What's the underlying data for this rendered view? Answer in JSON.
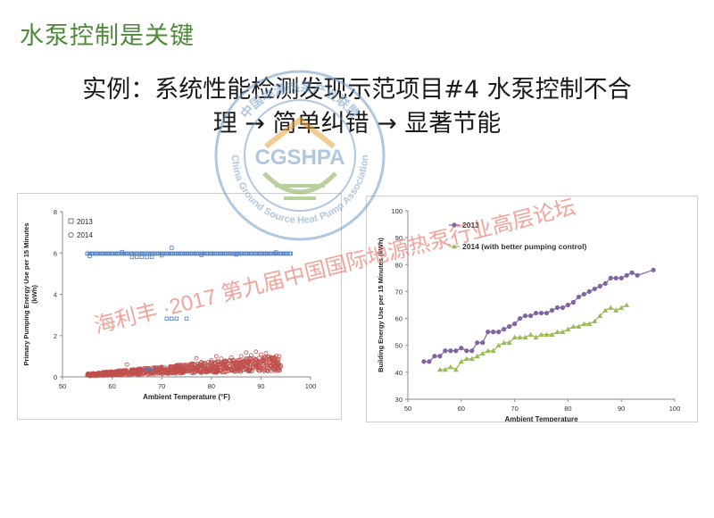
{
  "slide": {
    "title": "水泵控制是关键",
    "subtitle_line1": "实例：系统性能检测发现示范项目#4 水泵控制不合",
    "subtitle_line2": "理 → 简单纠错 → 显著节能"
  },
  "stamp": {
    "acronym": "CGSHPA",
    "ring_text": "China Ground Source Heat Pump Association",
    "top_text": "中国地源热泵产业联盟",
    "color": "#6f9bc7",
    "accent": "#e7a23a"
  },
  "watermark": {
    "text": "海利丰 ·2017  第九届中国国际地源热泵行业高层论坛",
    "color": "#e8584a"
  },
  "colors": {
    "title_green": "#4e8a3a",
    "series_2013_left": "#4f7fc0",
    "series_2014_left": "#c0504d",
    "series_2013_right": "#8064a2",
    "series_2014_right": "#9bbb59"
  },
  "chart_data": [
    {
      "type": "scatter",
      "title": "",
      "xlabel": "Ambient Temperature (°F)",
      "ylabel": "Primary Pumping Energy Use per 15 Minutes (kWh)",
      "ylabel_line1": "Primary Pumping Energy Use per 15 Minutes",
      "ylabel_line2": "(kWh)",
      "xlim": [
        50,
        100
      ],
      "ylim": [
        0,
        8
      ],
      "x_ticks": [
        "50",
        "60",
        "70",
        "80",
        "90",
        "100"
      ],
      "y_ticks": [
        "0",
        "2",
        "4",
        "6",
        "8"
      ],
      "grid": false,
      "legend": "top-left",
      "series": [
        {
          "name": "2013",
          "marker": "square-open",
          "points": [
            [
              55,
              5.97
            ],
            [
              56,
              5.97
            ],
            [
              57,
              5.97
            ],
            [
              58,
              5.97
            ],
            [
              59,
              5.97
            ],
            [
              60,
              5.97
            ],
            [
              61,
              5.97
            ],
            [
              62,
              5.97
            ],
            [
              63,
              5.97
            ],
            [
              64,
              5.97
            ],
            [
              65,
              5.97
            ],
            [
              66,
              5.97
            ],
            [
              67,
              5.97
            ],
            [
              68,
              5.97
            ],
            [
              69,
              5.97
            ],
            [
              70,
              5.97
            ],
            [
              71,
              5.97
            ],
            [
              72,
              5.97
            ],
            [
              73,
              5.97
            ],
            [
              74,
              5.97
            ],
            [
              75,
              5.97
            ],
            [
              76,
              5.97
            ],
            [
              77,
              5.97
            ],
            [
              78,
              5.97
            ],
            [
              79,
              5.97
            ],
            [
              80,
              5.97
            ],
            [
              81,
              5.97
            ],
            [
              82,
              5.97
            ],
            [
              83,
              5.97
            ],
            [
              84,
              5.97
            ],
            [
              85,
              5.97
            ],
            [
              86,
              5.97
            ],
            [
              87,
              5.97
            ],
            [
              88,
              5.97
            ],
            [
              89,
              5.97
            ],
            [
              90,
              5.97
            ],
            [
              91,
              5.97
            ],
            [
              92,
              5.97
            ],
            [
              93,
              5.97
            ],
            [
              94,
              5.97
            ],
            [
              95,
              5.97
            ],
            [
              96,
              5.97
            ],
            [
              55.5,
              5.85
            ],
            [
              62,
              6.05
            ],
            [
              70,
              5.88
            ],
            [
              72,
              6.25
            ],
            [
              78,
              5.9
            ],
            [
              85,
              5.92
            ],
            [
              93,
              6.03
            ],
            [
              64,
              5.8
            ],
            [
              65,
              5.8
            ],
            [
              66,
              5.8
            ],
            [
              67,
              5.8
            ],
            [
              68,
              5.8
            ],
            [
              71,
              2.82
            ],
            [
              72,
              2.82
            ],
            [
              73,
              2.82
            ],
            [
              75,
              2.82
            ],
            [
              67,
              0.35
            ],
            [
              68,
              0.35
            ]
          ]
        },
        {
          "name": "2014",
          "marker": "circle-open",
          "band": {
            "x_start": 55,
            "x_end": 94,
            "y_start_low": 0.04,
            "y_start_high": 0.16,
            "y_end_low": 0.3,
            "y_end_high": 1.05
          },
          "points": [
            [
              55,
              0.1
            ],
            [
              56,
              0.12
            ],
            [
              58,
              0.14
            ],
            [
              60,
              0.16
            ],
            [
              62,
              0.2
            ],
            [
              63,
              0.6
            ],
            [
              64,
              0.25
            ],
            [
              66,
              0.3
            ],
            [
              68,
              0.35
            ],
            [
              70,
              0.42
            ],
            [
              72,
              0.5
            ],
            [
              74,
              0.58
            ],
            [
              76,
              0.65
            ],
            [
              78,
              0.72
            ],
            [
              80,
              0.8
            ],
            [
              82,
              0.88
            ],
            [
              84,
              0.94
            ],
            [
              86,
              1.0
            ],
            [
              88,
              1.05
            ],
            [
              90,
              1.08
            ],
            [
              91,
              1.15
            ],
            [
              92,
              0.95
            ],
            [
              93,
              0.7
            ],
            [
              94,
              0.55
            ],
            [
              89,
              1.22
            ],
            [
              87,
              1.18
            ],
            [
              85,
              0.45
            ],
            [
              83,
              0.4
            ],
            [
              79,
              0.38
            ],
            [
              81,
              1.0
            ],
            [
              77,
              0.9
            ]
          ]
        }
      ]
    },
    {
      "type": "line",
      "title": "",
      "xlabel": "Ambient Temperature",
      "ylabel": "Building Energy Use per 15 Minutes (kWh)",
      "xlim": [
        50,
        100
      ],
      "ylim": [
        30,
        100
      ],
      "x_ticks": [
        "50",
        "60",
        "70",
        "80",
        "90",
        "100"
      ],
      "y_ticks": [
        "30",
        "40",
        "50",
        "60",
        "70",
        "80",
        "90",
        "100"
      ],
      "grid": false,
      "legend": "top-left",
      "series": [
        {
          "name": "2013",
          "marker": "circle",
          "points": [
            [
              53,
              44
            ],
            [
              54,
              44
            ],
            [
              55,
              46
            ],
            [
              56,
              46
            ],
            [
              57,
              48
            ],
            [
              58,
              48
            ],
            [
              59,
              48
            ],
            [
              60,
              49
            ],
            [
              61,
              48
            ],
            [
              62,
              48
            ],
            [
              63,
              51
            ],
            [
              64,
              51
            ],
            [
              65,
              55
            ],
            [
              66,
              55
            ],
            [
              67,
              55
            ],
            [
              68,
              56
            ],
            [
              69,
              57
            ],
            [
              70,
              58
            ],
            [
              71,
              60
            ],
            [
              72,
              61
            ],
            [
              73,
              61
            ],
            [
              74,
              62
            ],
            [
              75,
              62
            ],
            [
              76,
              62
            ],
            [
              77,
              63
            ],
            [
              78,
              64
            ],
            [
              79,
              64
            ],
            [
              80,
              65
            ],
            [
              81,
              66
            ],
            [
              82,
              68
            ],
            [
              83,
              69
            ],
            [
              84,
              70
            ],
            [
              85,
              71
            ],
            [
              86,
              72
            ],
            [
              87,
              73
            ],
            [
              88,
              75
            ],
            [
              89,
              75
            ],
            [
              90,
              75
            ],
            [
              91,
              76
            ],
            [
              92,
              77
            ],
            [
              93,
              76
            ],
            [
              96,
              78
            ]
          ]
        },
        {
          "name": "2014 (with better pumping control)",
          "marker": "triangle",
          "points": [
            [
              56,
              41
            ],
            [
              57,
              41
            ],
            [
              58,
              42
            ],
            [
              59,
              41
            ],
            [
              60,
              44
            ],
            [
              61,
              45
            ],
            [
              62,
              45
            ],
            [
              63,
              46
            ],
            [
              64,
              47
            ],
            [
              65,
              48
            ],
            [
              66,
              48
            ],
            [
              67,
              50
            ],
            [
              68,
              51
            ],
            [
              69,
              51
            ],
            [
              70,
              53
            ],
            [
              71,
              53
            ],
            [
              72,
              53
            ],
            [
              73,
              54
            ],
            [
              74,
              53
            ],
            [
              75,
              54
            ],
            [
              76,
              54
            ],
            [
              77,
              54
            ],
            [
              78,
              55
            ],
            [
              79,
              55
            ],
            [
              80,
              56
            ],
            [
              81,
              57
            ],
            [
              82,
              57
            ],
            [
              83,
              58
            ],
            [
              84,
              58
            ],
            [
              85,
              59
            ],
            [
              86,
              61
            ],
            [
              87,
              63
            ],
            [
              88,
              64
            ],
            [
              89,
              63
            ],
            [
              90,
              64
            ],
            [
              91,
              65
            ]
          ]
        }
      ]
    }
  ]
}
